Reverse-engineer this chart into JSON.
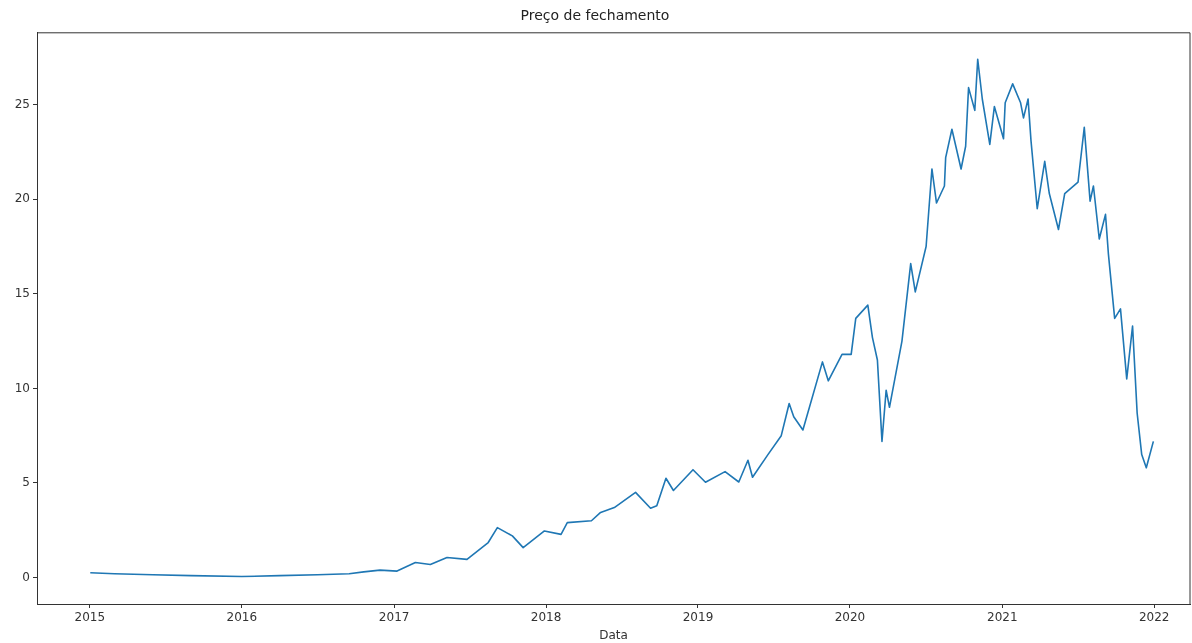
{
  "chart_data": {
    "type": "line",
    "title": "Preço de fechamento",
    "xlabel": "Data",
    "x": [
      "2015-01-02",
      "2015-03-01",
      "2015-06-01",
      "2015-09-01",
      "2016-01-01",
      "2016-04-01",
      "2016-07-01",
      "2016-09-15",
      "2016-10-20",
      "2016-11-28",
      "2017-01-08",
      "2017-02-21",
      "2017-03-29",
      "2017-05-08",
      "2017-06-25",
      "2017-08-15",
      "2017-09-06",
      "2017-10-12",
      "2017-11-07",
      "2017-12-28",
      "2018-02-06",
      "2018-02-21",
      "2018-04-20",
      "2018-05-12",
      "2018-06-14",
      "2018-08-04",
      "2018-09-09",
      "2018-09-24",
      "2018-10-16",
      "2018-11-03",
      "2018-12-20",
      "2019-01-19",
      "2019-03-07",
      "2019-04-09",
      "2019-05-01",
      "2019-05-12",
      "2019-06-18",
      "2019-07-20",
      "2019-08-08",
      "2019-08-19",
      "2019-09-10",
      "2019-10-27",
      "2019-11-10",
      "2019-12-13",
      "2020-01-04",
      "2020-01-15",
      "2020-02-13",
      "2020-02-24",
      "2020-03-07",
      "2020-03-18",
      "2020-03-28",
      "2020-04-05",
      "2020-05-05",
      "2020-05-26",
      "2020-06-06",
      "2020-07-02",
      "2020-07-16",
      "2020-07-27",
      "2020-08-15",
      "2020-08-18",
      "2020-09-02",
      "2020-09-24",
      "2020-10-05",
      "2020-10-12",
      "2020-10-27",
      "2020-11-03",
      "2020-11-14",
      "2020-12-02",
      "2020-12-13",
      "2021-01-04",
      "2021-01-08",
      "2021-01-26",
      "2021-02-14",
      "2021-02-21",
      "2021-03-04",
      "2021-03-11",
      "2021-03-26",
      "2021-04-13",
      "2021-04-24",
      "2021-05-16",
      "2021-05-31",
      "2021-07-02",
      "2021-07-17",
      "2021-07-31",
      "2021-08-08",
      "2021-08-22",
      "2021-09-06",
      "2021-09-13",
      "2021-09-28",
      "2021-10-12",
      "2021-10-27",
      "2021-11-10",
      "2021-11-21",
      "2021-12-02",
      "2021-12-13",
      "2021-12-30"
    ],
    "series": [
      {
        "color": "#1f77b4",
        "values": [
          0.25,
          0.2,
          0.15,
          0.1,
          0.05,
          0.1,
          0.15,
          0.2,
          0.3,
          0.39,
          0.34,
          0.79,
          0.69,
          1.06,
          0.96,
          1.85,
          2.64,
          2.2,
          1.58,
          2.46,
          2.28,
          2.9,
          3.0,
          3.44,
          3.7,
          4.5,
          3.66,
          3.8,
          5.25,
          4.6,
          5.7,
          5.04,
          5.6,
          5.05,
          6.2,
          5.3,
          6.5,
          7.5,
          9.2,
          8.5,
          7.8,
          11.4,
          10.4,
          11.8,
          11.8,
          13.7,
          14.4,
          12.7,
          11.5,
          7.2,
          9.9,
          9.0,
          12.5,
          16.6,
          15.1,
          17.5,
          21.6,
          19.8,
          20.7,
          22.2,
          23.7,
          21.6,
          22.8,
          25.9,
          24.7,
          27.4,
          25.3,
          22.9,
          24.9,
          23.2,
          25.1,
          26.1,
          25.1,
          24.3,
          25.3,
          23.1,
          19.5,
          22.0,
          20.3,
          18.4,
          20.3,
          20.9,
          23.8,
          19.9,
          20.7,
          17.9,
          19.2,
          17.1,
          13.7,
          14.2,
          10.5,
          13.3,
          8.7,
          6.5,
          5.8,
          7.2
        ]
      }
    ],
    "xlim": [
      "2014-08-27",
      "2022-03-28"
    ],
    "xticks": [
      "2015",
      "2016",
      "2017",
      "2018",
      "2019",
      "2020",
      "2021",
      "2022"
    ],
    "ylim": [
      -1.4,
      28.8
    ],
    "yticks": [
      0,
      5,
      10,
      15,
      20,
      25
    ],
    "grid": false,
    "legend": false,
    "marker": "none",
    "line_style": "solid"
  }
}
